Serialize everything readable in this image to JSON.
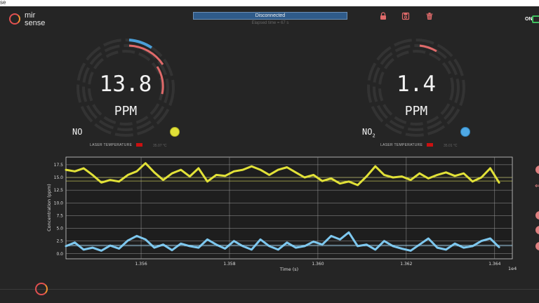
{
  "window": {
    "title": "se",
    "minimize": "—",
    "maximize": "☐",
    "close": "✕"
  },
  "logo": {
    "line1": "mir",
    "line2": "sense"
  },
  "header": {
    "status": "Disconnected",
    "elapsed": "Elapsed time = 67 s",
    "toggle_label": "ON"
  },
  "icons": {
    "lock": "lock-icon",
    "save": "save-icon",
    "trash": "trash-icon"
  },
  "gauges": [
    {
      "value": "13.8",
      "unit": "PPM",
      "gas": "NO",
      "gas_sub": "",
      "dot_color": "#e1e138",
      "laser_label": "LASER TEMPERATURE",
      "laser_value": "35.07 °C"
    },
    {
      "value": "1.4",
      "unit": "PPM",
      "gas": "NO",
      "gas_sub": "2",
      "dot_color": "#4fa9e6",
      "laser_label": "LASER TEMPERATURE",
      "laser_value": "35.01 °C"
    }
  ],
  "colors": {
    "no": "#e1e138",
    "no2": "#7ec8ef",
    "accent": "#e06a6a",
    "status": "#2f5b8a"
  },
  "chart_data": {
    "type": "line",
    "xlabel": "Time (s)",
    "ylabel": "Concentration (ppm)",
    "x_offset_label": "1e4",
    "xlim": [
      1.3543,
      1.3644
    ],
    "ylim": [
      -1.0,
      19.0
    ],
    "xticks": [
      1.356,
      1.358,
      1.36,
      1.362,
      1.364
    ],
    "xtick_labels": [
      "1.356",
      "1.358",
      "1.360",
      "1.362",
      "1.364"
    ],
    "yticks": [
      0.0,
      2.5,
      5.0,
      7.5,
      10.0,
      12.5,
      15.0,
      17.5
    ],
    "ytick_labels": [
      "0.0",
      "2.5",
      "5.0",
      "7.5",
      "10.0",
      "12.5",
      "15.0",
      "17.5"
    ],
    "grid": true,
    "hlines": [
      15.0,
      14.3,
      1.7,
      1.5
    ],
    "series": [
      {
        "color": "#e1e138",
        "x": [
          1.3543,
          1.3545,
          1.3547,
          1.3549,
          1.3551,
          1.3553,
          1.3555,
          1.3557,
          1.3559,
          1.3561,
          1.3563,
          1.3565,
          1.3567,
          1.3569,
          1.3571,
          1.3573,
          1.3575,
          1.3577,
          1.3579,
          1.3581,
          1.3583,
          1.3585,
          1.3587,
          1.3589,
          1.3591,
          1.3593,
          1.3595,
          1.3597,
          1.3599,
          1.3601,
          1.3603,
          1.3605,
          1.3607,
          1.3609,
          1.3611,
          1.3613,
          1.3615,
          1.3617,
          1.3619,
          1.3621,
          1.3623,
          1.3625,
          1.3627,
          1.3629,
          1.3631,
          1.3633,
          1.3635,
          1.3637,
          1.3639,
          1.3641
        ],
        "y": [
          16.5,
          16.2,
          16.8,
          15.5,
          14.0,
          14.5,
          14.2,
          15.5,
          16.2,
          17.8,
          16.0,
          14.5,
          15.8,
          16.5,
          15.2,
          16.8,
          14.2,
          15.5,
          15.3,
          16.2,
          16.5,
          17.2,
          16.5,
          15.5,
          16.5,
          17.0,
          16.0,
          15.0,
          15.5,
          14.3,
          14.8,
          13.8,
          14.2,
          13.5,
          15.2,
          17.2,
          15.5,
          15.0,
          15.2,
          14.5,
          15.8,
          14.8,
          15.5,
          16.0,
          15.3,
          15.8,
          14.2,
          15.0,
          16.8,
          14.0
        ]
      },
      {
        "color": "#7ec8ef",
        "x": [
          1.3543,
          1.3545,
          1.3547,
          1.3549,
          1.3551,
          1.3553,
          1.3555,
          1.3557,
          1.3559,
          1.3561,
          1.3563,
          1.3565,
          1.3567,
          1.3569,
          1.3571,
          1.3573,
          1.3575,
          1.3577,
          1.3579,
          1.3581,
          1.3583,
          1.3585,
          1.3587,
          1.3589,
          1.3591,
          1.3593,
          1.3595,
          1.3597,
          1.3599,
          1.3601,
          1.3603,
          1.3605,
          1.3607,
          1.3609,
          1.3611,
          1.3613,
          1.3615,
          1.3617,
          1.3619,
          1.3621,
          1.3623,
          1.3625,
          1.3627,
          1.3629,
          1.3631,
          1.3633,
          1.3635,
          1.3637,
          1.3639,
          1.3641
        ],
        "y": [
          1.5,
          2.2,
          0.8,
          1.2,
          0.6,
          1.6,
          1.0,
          2.6,
          3.5,
          2.8,
          1.2,
          1.8,
          0.7,
          2.0,
          1.5,
          1.2,
          2.8,
          1.8,
          1.0,
          2.5,
          1.5,
          0.8,
          2.8,
          1.5,
          0.8,
          2.2,
          1.2,
          1.5,
          2.4,
          1.8,
          3.5,
          2.8,
          4.2,
          1.5,
          1.8,
          0.8,
          2.5,
          1.5,
          1.0,
          0.6,
          1.8,
          3.0,
          1.2,
          0.8,
          2.0,
          1.2,
          1.5,
          2.5,
          3.0,
          1.3
        ]
      }
    ]
  }
}
